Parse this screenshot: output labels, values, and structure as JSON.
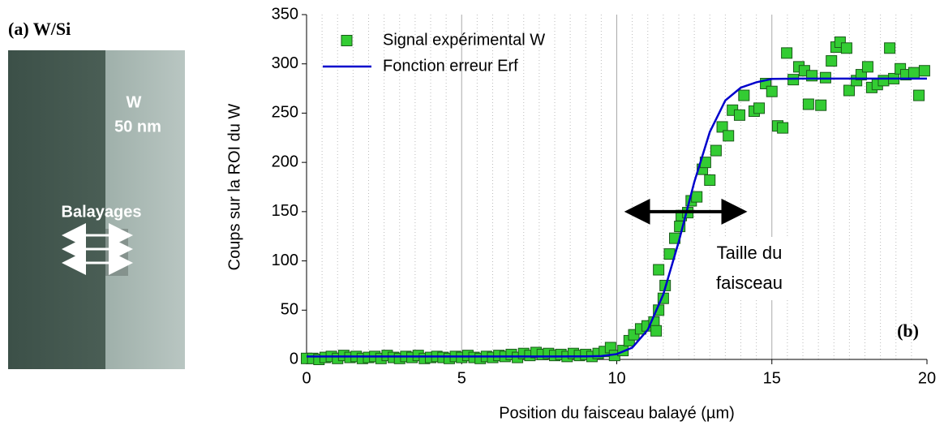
{
  "panel_a": {
    "label": "(a) W/Si",
    "layer": "W",
    "thickness": "50 nm",
    "scan_label": "Balayages"
  },
  "chart_data": {
    "type": "scatter",
    "x_label": "Position du faisceau balayé (µm)",
    "y_label": "Coups sur la ROI du W",
    "xlim": [
      0,
      20
    ],
    "xticks": [
      0,
      5,
      10,
      15,
      20
    ],
    "ylim": [
      0,
      350
    ],
    "yticks": [
      0,
      50,
      100,
      150,
      200,
      250,
      300,
      350
    ],
    "grid": true,
    "legend": "upper left",
    "annotations": [
      "Taille du",
      "faisceau",
      "(b)"
    ],
    "series": [
      {
        "name": "Signal expérimental W",
        "color": "#33cc33",
        "type": "scatter",
        "x": [
          0,
          0.2,
          0.4,
          0.6,
          0.8,
          1,
          1.2,
          1.4,
          1.6,
          1.8,
          2,
          2.2,
          2.4,
          2.6,
          2.8,
          3,
          3.2,
          3.4,
          3.6,
          3.8,
          4,
          4.2,
          4.4,
          4.6,
          4.8,
          5,
          5.2,
          5.4,
          5.6,
          5.8,
          6,
          6.2,
          6.4,
          6.6,
          6.8,
          7,
          7.2,
          7.4,
          7.6,
          7.8,
          8,
          8.2,
          8.4,
          8.6,
          8.8,
          9,
          9.2,
          9.4,
          9.6,
          9.8,
          9.93,
          10.2,
          10.4,
          10.55,
          10.77,
          10.98,
          11.2,
          11.27,
          11.35,
          11.5,
          11.56,
          11.35,
          11.7,
          11.87,
          12.03,
          12.08,
          12.29,
          12.4,
          12.58,
          12.76,
          12.86,
          13.0,
          13.2,
          13.4,
          13.6,
          13.73,
          13.96,
          14.1,
          14.43,
          14.59,
          14.8,
          15.0,
          15.19,
          15.35,
          15.48,
          15.69,
          15.87,
          16.05,
          16.18,
          16.29,
          16.58,
          16.73,
          16.92,
          17.07,
          17.2,
          17.41,
          17.49,
          17.73,
          17.88,
          18.09,
          18.22,
          18.4,
          18.6,
          18.8,
          18.93,
          19.14,
          19.32,
          19.58,
          19.74,
          19.92
        ],
        "values": [
          1,
          1,
          0,
          2,
          3,
          1,
          4,
          2,
          3,
          1,
          2,
          3,
          1,
          4,
          2,
          1,
          3,
          2,
          4,
          1,
          2,
          3,
          2,
          1,
          3,
          2,
          4,
          2,
          1,
          3,
          2,
          4,
          3,
          5,
          2,
          6,
          4,
          7,
          5,
          6,
          4,
          5,
          3,
          6,
          4,
          5,
          3,
          6,
          8,
          12,
          4,
          9,
          19,
          25,
          31,
          34,
          38,
          29,
          50,
          62,
          75,
          91,
          107,
          123,
          135,
          146,
          149,
          161,
          165,
          193,
          200,
          182,
          212,
          236,
          227,
          253,
          248,
          268,
          252,
          255,
          280,
          272,
          237,
          235,
          311,
          284,
          297,
          293,
          259,
          288,
          258,
          286,
          303,
          317,
          322,
          316,
          273,
          283,
          289,
          297,
          276,
          279,
          283,
          316,
          285,
          295,
          289,
          291,
          268,
          293
        ]
      },
      {
        "name": "Fonction erreur Erf",
        "color": "#0000cc",
        "type": "line",
        "x": [
          0,
          8,
          9,
          9.5,
          10,
          10.5,
          11,
          11.5,
          12,
          12.5,
          13,
          13.5,
          14,
          14.5,
          15,
          16,
          20
        ],
        "values": [
          3,
          3,
          3.1,
          3.4,
          5.4,
          12,
          30.1,
          66,
          119.7,
          180.1,
          230.9,
          262.9,
          275.9,
          281.3,
          284.7,
          285,
          285
        ]
      }
    ]
  }
}
